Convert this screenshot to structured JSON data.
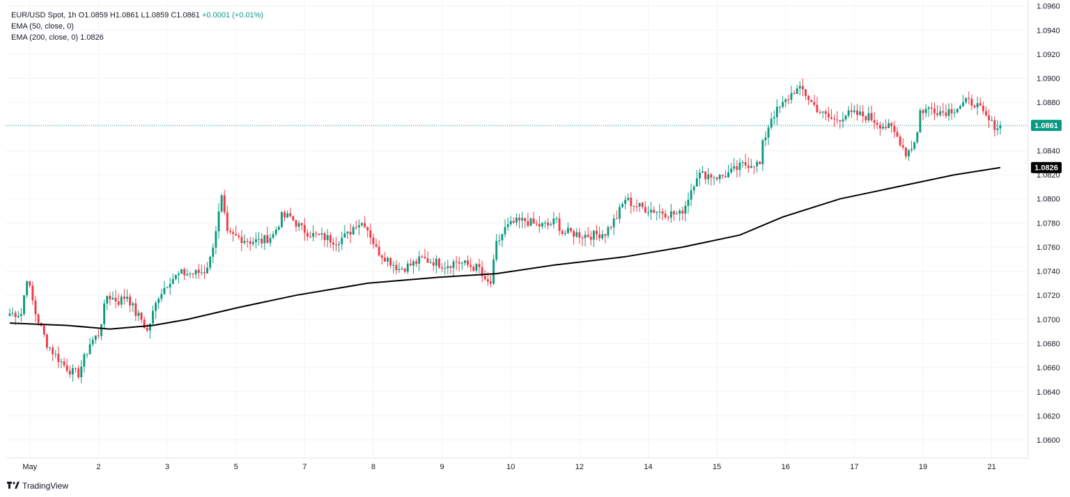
{
  "legend": {
    "symbol": "EUR/USD Spot, 1h",
    "ohlc": "O1.0859  H1.0861  L1.0859  C1.0861",
    "change": "+0.0001 (+0.01%)",
    "ema50": "EMA (50, close, 0)",
    "ema200_label": "EMA (200, close, 0)",
    "ema200_value": "1.0826"
  },
  "brand": {
    "name": "TradingView",
    "icon": "tradingview-logo-icon"
  },
  "colors": {
    "up": "#089981",
    "down": "#F23645",
    "ema": "#000000",
    "price_line": "#089981"
  },
  "chart_data": {
    "type": "candlestick",
    "title": "EUR/USD Spot, 1h",
    "ylim": [
      1.0585,
      1.0965
    ],
    "y_ticks": [
      "1.0960",
      "1.0940",
      "1.0920",
      "1.0900",
      "1.0880",
      "1.0860",
      "1.0840",
      "1.0820",
      "1.0800",
      "1.0780",
      "1.0760",
      "1.0740",
      "1.0720",
      "1.0700",
      "1.0680",
      "1.0660",
      "1.0640",
      "1.0620",
      "1.0600"
    ],
    "x_ticks": [
      {
        "label": "May",
        "t": 7
      },
      {
        "label": "2",
        "t": 31
      },
      {
        "label": "3",
        "t": 55
      },
      {
        "label": "5",
        "t": 79
      },
      {
        "label": "7",
        "t": 103
      },
      {
        "label": "8",
        "t": 127
      },
      {
        "label": "9",
        "t": 151
      },
      {
        "label": "10",
        "t": 175
      },
      {
        "label": "12",
        "t": 199
      },
      {
        "label": "14",
        "t": 223
      },
      {
        "label": "15",
        "t": 247
      },
      {
        "label": "16",
        "t": 271
      },
      {
        "label": "17",
        "t": 295
      },
      {
        "label": "19",
        "t": 319
      },
      {
        "label": "21",
        "t": 343
      }
    ],
    "t_max": 346,
    "anchors": [
      [
        0,
        1.0705
      ],
      [
        4,
        1.0705
      ],
      [
        6,
        1.0735
      ],
      [
        9,
        1.0705
      ],
      [
        13,
        1.068
      ],
      [
        16,
        1.067
      ],
      [
        19,
        1.0662
      ],
      [
        22,
        1.0656
      ],
      [
        24,
        1.0655
      ],
      [
        28,
        1.068
      ],
      [
        31,
        1.0688
      ],
      [
        34,
        1.072
      ],
      [
        38,
        1.0715
      ],
      [
        41,
        1.072
      ],
      [
        44,
        1.0705
      ],
      [
        46,
        1.07
      ],
      [
        48,
        1.069
      ],
      [
        52,
        1.072
      ],
      [
        56,
        1.0733
      ],
      [
        60,
        1.0738
      ],
      [
        64,
        1.0738
      ],
      [
        68,
        1.074
      ],
      [
        70,
        1.075
      ],
      [
        74,
        1.08
      ],
      [
        76,
        1.077
      ],
      [
        80,
        1.0768
      ],
      [
        84,
        1.0765
      ],
      [
        88,
        1.0765
      ],
      [
        92,
        1.077
      ],
      [
        95,
        1.0785
      ],
      [
        98,
        1.0785
      ],
      [
        102,
        1.0775
      ],
      [
        106,
        1.077
      ],
      [
        110,
        1.0768
      ],
      [
        114,
        1.0765
      ],
      [
        118,
        1.077
      ],
      [
        121,
        1.078
      ],
      [
        124,
        1.078
      ],
      [
        126,
        1.077
      ],
      [
        128,
        1.0758
      ],
      [
        132,
        1.075
      ],
      [
        136,
        1.0742
      ],
      [
        140,
        1.0745
      ],
      [
        144,
        1.075
      ],
      [
        148,
        1.0748
      ],
      [
        152,
        1.0745
      ],
      [
        156,
        1.0748
      ],
      [
        160,
        1.0745
      ],
      [
        164,
        1.0742
      ],
      [
        166,
        1.073
      ],
      [
        168,
        1.073
      ],
      [
        170,
        1.0762
      ],
      [
        173,
        1.0775
      ],
      [
        176,
        1.078
      ],
      [
        180,
        1.0782
      ],
      [
        184,
        1.0778
      ],
      [
        188,
        1.0778
      ],
      [
        191,
        1.0782
      ],
      [
        193,
        1.0772
      ],
      [
        196,
        1.0772
      ],
      [
        200,
        1.077
      ],
      [
        204,
        1.077
      ],
      [
        208,
        1.0772
      ],
      [
        212,
        1.0785
      ],
      [
        215,
        1.08
      ],
      [
        218,
        1.0795
      ],
      [
        222,
        1.0792
      ],
      [
        226,
        1.079
      ],
      [
        230,
        1.0788
      ],
      [
        234,
        1.0787
      ],
      [
        236,
        1.0795
      ],
      [
        238,
        1.0808
      ],
      [
        240,
        1.082
      ],
      [
        244,
        1.082
      ],
      [
        248,
        1.0818
      ],
      [
        252,
        1.0822
      ],
      [
        256,
        1.0828
      ],
      [
        260,
        1.083
      ],
      [
        262,
        1.0828
      ],
      [
        263,
        1.0845
      ],
      [
        266,
        1.0868
      ],
      [
        270,
        1.0878
      ],
      [
        274,
        1.089
      ],
      [
        277,
        1.089
      ],
      [
        280,
        1.088
      ],
      [
        284,
        1.087
      ],
      [
        288,
        1.0865
      ],
      [
        292,
        1.087
      ],
      [
        296,
        1.087
      ],
      [
        300,
        1.0868
      ],
      [
        304,
        1.0862
      ],
      [
        308,
        1.0858
      ],
      [
        311,
        1.0848
      ],
      [
        313,
        1.0838
      ],
      [
        315,
        1.0843
      ],
      [
        317,
        1.0855
      ],
      [
        318,
        1.0873
      ],
      [
        322,
        1.0875
      ],
      [
        326,
        1.0872
      ],
      [
        330,
        1.0875
      ],
      [
        334,
        1.088
      ],
      [
        337,
        1.088
      ],
      [
        340,
        1.087
      ],
      [
        343,
        1.0862
      ],
      [
        345,
        1.086
      ],
      [
        346,
        1.0861
      ]
    ],
    "ema200": [
      [
        0,
        1.0697
      ],
      [
        20,
        1.0695
      ],
      [
        35,
        1.0692
      ],
      [
        50,
        1.0695
      ],
      [
        62,
        1.07
      ],
      [
        80,
        1.071
      ],
      [
        100,
        1.072
      ],
      [
        125,
        1.073
      ],
      [
        150,
        1.0735
      ],
      [
        170,
        1.0738
      ],
      [
        190,
        1.0745
      ],
      [
        215,
        1.0752
      ],
      [
        235,
        1.076
      ],
      [
        255,
        1.077
      ],
      [
        270,
        1.0785
      ],
      [
        290,
        1.08
      ],
      [
        310,
        1.081
      ],
      [
        330,
        1.082
      ],
      [
        346,
        1.0826
      ]
    ],
    "last_price": 1.0861,
    "last_price_label": "1.0861",
    "ema200_last": 1.0826,
    "ema200_last_label": "1.0826"
  }
}
